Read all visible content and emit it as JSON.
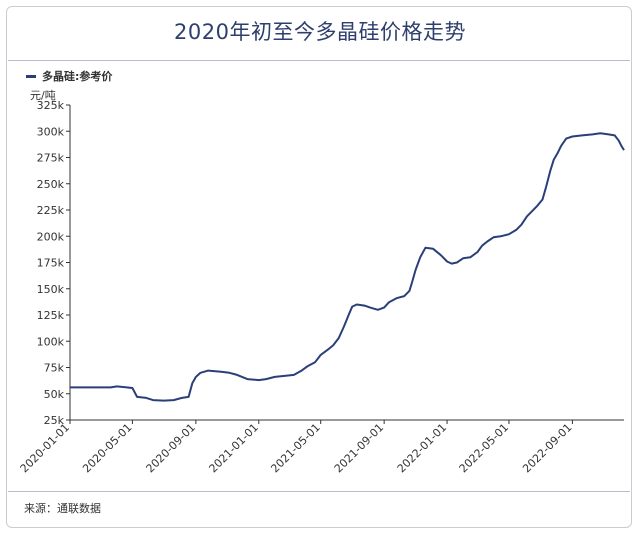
{
  "title": "2020年初至今多晶硅价格走势",
  "legend": "多晶硅:参考价",
  "unit": "元/吨",
  "source": "来源：通联数据",
  "colors": {
    "line": "#2a3f7a",
    "title": "#2e3f6e",
    "axis": "#333333",
    "frame": "#c9cdd3"
  },
  "chart_data": {
    "type": "line",
    "title": "2020年初至今多晶硅价格走势",
    "ylabel": "元/吨",
    "ylim": [
      25000,
      325000
    ],
    "y_ticks": [
      25000,
      50000,
      75000,
      100000,
      125000,
      150000,
      175000,
      200000,
      225000,
      250000,
      275000,
      300000,
      325000
    ],
    "y_tick_labels": [
      "25k",
      "50k",
      "75k",
      "100k",
      "125k",
      "150k",
      "175k",
      "200k",
      "225k",
      "250k",
      "275k",
      "300k",
      "325k"
    ],
    "x_tick_labels": [
      "2020-01-01",
      "2020-05-01",
      "2020-09-01",
      "2021-01-01",
      "2021-05-01",
      "2021-09-01",
      "2022-01-01",
      "2022-05-01",
      "2022-09-01"
    ],
    "x_tick_dates": [
      "2020-01-01",
      "2020-05-01",
      "2020-09-01",
      "2021-01-01",
      "2021-05-01",
      "2021-09-01",
      "2022-01-01",
      "2022-05-01",
      "2022-09-01"
    ],
    "xlim": [
      "2020-01-01",
      "2022-12-10"
    ],
    "legend_position": "top-left",
    "grid": false,
    "series": [
      {
        "name": "多晶硅:参考价",
        "points": [
          [
            "2020-01-01",
            56000
          ],
          [
            "2020-03-20",
            56000
          ],
          [
            "2020-04-01",
            57000
          ],
          [
            "2020-05-01",
            55500
          ],
          [
            "2020-05-10",
            47000
          ],
          [
            "2020-05-28",
            46000
          ],
          [
            "2020-06-10",
            44000
          ],
          [
            "2020-07-01",
            43500
          ],
          [
            "2020-07-20",
            44000
          ],
          [
            "2020-08-05",
            46000
          ],
          [
            "2020-08-18",
            47000
          ],
          [
            "2020-08-25",
            60000
          ],
          [
            "2020-09-01",
            66000
          ],
          [
            "2020-09-10",
            70000
          ],
          [
            "2020-09-25",
            72000
          ],
          [
            "2020-10-20",
            71000
          ],
          [
            "2020-11-05",
            70000
          ],
          [
            "2020-11-20",
            68000
          ],
          [
            "2020-12-10",
            64000
          ],
          [
            "2021-01-01",
            63000
          ],
          [
            "2021-01-15",
            64000
          ],
          [
            "2021-02-01",
            66000
          ],
          [
            "2021-02-20",
            67000
          ],
          [
            "2021-03-10",
            68000
          ],
          [
            "2021-03-25",
            72000
          ],
          [
            "2021-04-05",
            76000
          ],
          [
            "2021-04-20",
            80000
          ],
          [
            "2021-05-01",
            87000
          ],
          [
            "2021-05-15",
            92000
          ],
          [
            "2021-05-25",
            96000
          ],
          [
            "2021-06-05",
            103000
          ],
          [
            "2021-06-15",
            114000
          ],
          [
            "2021-06-25",
            126000
          ],
          [
            "2021-07-01",
            133000
          ],
          [
            "2021-07-10",
            135000
          ],
          [
            "2021-07-25",
            134000
          ],
          [
            "2021-08-05",
            132000
          ],
          [
            "2021-08-20",
            130000
          ],
          [
            "2021-09-01",
            132000
          ],
          [
            "2021-09-10",
            137000
          ],
          [
            "2021-09-25",
            141000
          ],
          [
            "2021-10-10",
            143000
          ],
          [
            "2021-10-20",
            148000
          ],
          [
            "2021-10-25",
            156000
          ],
          [
            "2021-11-01",
            168000
          ],
          [
            "2021-11-10",
            180000
          ],
          [
            "2021-11-20",
            189000
          ],
          [
            "2021-12-05",
            188000
          ],
          [
            "2021-12-20",
            182000
          ],
          [
            "2022-01-01",
            176000
          ],
          [
            "2022-01-10",
            174000
          ],
          [
            "2022-01-20",
            175000
          ],
          [
            "2022-02-01",
            179000
          ],
          [
            "2022-02-15",
            180000
          ],
          [
            "2022-03-01",
            185000
          ],
          [
            "2022-03-10",
            191000
          ],
          [
            "2022-03-20",
            195000
          ],
          [
            "2022-04-01",
            199000
          ],
          [
            "2022-04-15",
            200000
          ],
          [
            "2022-05-01",
            202000
          ],
          [
            "2022-05-15",
            206000
          ],
          [
            "2022-05-25",
            211000
          ],
          [
            "2022-06-05",
            219000
          ],
          [
            "2022-06-15",
            224000
          ],
          [
            "2022-06-25",
            229000
          ],
          [
            "2022-07-05",
            235000
          ],
          [
            "2022-07-12",
            247000
          ],
          [
            "2022-07-20",
            262000
          ],
          [
            "2022-07-27",
            273000
          ],
          [
            "2022-08-03",
            279000
          ],
          [
            "2022-08-10",
            286000
          ],
          [
            "2022-08-20",
            293000
          ],
          [
            "2022-09-01",
            295000
          ],
          [
            "2022-09-20",
            296000
          ],
          [
            "2022-10-10",
            297000
          ],
          [
            "2022-10-25",
            298000
          ],
          [
            "2022-11-10",
            297000
          ],
          [
            "2022-11-22",
            296000
          ],
          [
            "2022-11-30",
            291000
          ],
          [
            "2022-12-05",
            286000
          ],
          [
            "2022-12-10",
            282000
          ]
        ]
      }
    ]
  }
}
